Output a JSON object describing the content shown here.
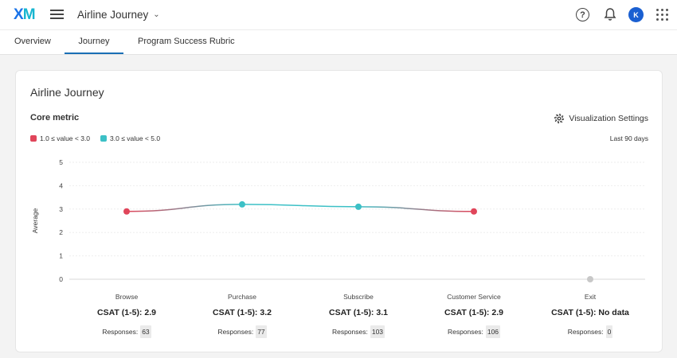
{
  "header": {
    "logo_a": "X",
    "logo_b": "M",
    "project_title": "Airline Journey",
    "help_glyph": "?",
    "avatar_initial": "K"
  },
  "tabs": [
    {
      "label": "Overview"
    },
    {
      "label": "Journey"
    },
    {
      "label": "Program Success Rubric"
    }
  ],
  "card": {
    "title": "Airline Journey",
    "core_metric_label": "Core metric",
    "viz_settings_label": "Visualization Settings",
    "date_range": "Last 90 days",
    "legend": [
      {
        "label": "1.0 ≤ value < 3.0",
        "color": "#e0455a"
      },
      {
        "label": "3.0 ≤ value < 5.0",
        "color": "#3cc0c6"
      }
    ]
  },
  "chart_data": {
    "type": "line",
    "ylabel": "Average",
    "ylim": [
      0,
      5
    ],
    "yticks": [
      "5",
      "4",
      "3",
      "2",
      "1",
      "0"
    ],
    "grid": true,
    "categories": [
      "Browse",
      "Purchase",
      "Subscribe",
      "Customer Service",
      "Exit"
    ],
    "values": [
      2.9,
      3.2,
      3.1,
      2.9,
      null
    ],
    "no_data_marker_color": "#c8c8c8"
  },
  "stages": [
    {
      "name": "Browse",
      "metric": "CSAT (1-5): 2.9",
      "responses_label": "Responses:",
      "responses": "63"
    },
    {
      "name": "Purchase",
      "metric": "CSAT (1-5): 3.2",
      "responses_label": "Responses:",
      "responses": "77"
    },
    {
      "name": "Subscribe",
      "metric": "CSAT (1-5): 3.1",
      "responses_label": "Responses:",
      "responses": "103"
    },
    {
      "name": "Customer Service",
      "metric": "CSAT (1-5): 2.9",
      "responses_label": "Responses:",
      "responses": "106"
    },
    {
      "name": "Exit",
      "metric": "CSAT (1-5): No data",
      "responses_label": "Responses:",
      "responses": "0"
    }
  ]
}
